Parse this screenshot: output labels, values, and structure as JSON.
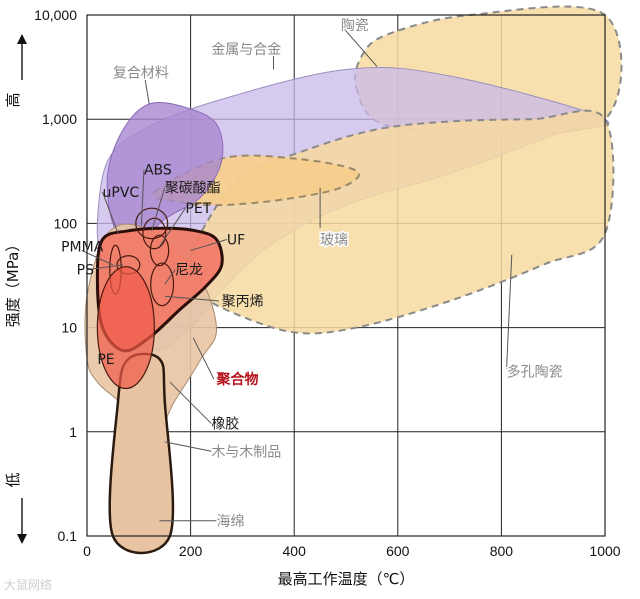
{
  "chart_data": {
    "type": "area",
    "xlabel": "最高工作温度（℃）",
    "ylabel": "强度（MPa）",
    "y_high_label": "高",
    "y_low_label": "低",
    "xlim": [
      0,
      1000
    ],
    "ylim": [
      0.1,
      10000
    ],
    "y_scale": "log",
    "grid": true,
    "x_ticks": [
      0,
      200,
      400,
      600,
      800,
      1000
    ],
    "x_tick_labels": [
      "0",
      "200",
      "400",
      "600",
      "800",
      "1000"
    ],
    "y_ticks": [
      0.1,
      1,
      10,
      100,
      1000,
      10000
    ],
    "y_tick_labels": [
      "0.1",
      "1",
      "10",
      "100",
      "1,000",
      "10,000"
    ],
    "regions": [
      {
        "name": "陶瓷",
        "color": "#f7d9a0",
        "points": [
          [
            520,
            2000
          ],
          [
            570,
            900
          ],
          [
            750,
            750
          ],
          [
            1000,
            1000
          ],
          [
            1000,
            10000
          ],
          [
            740,
            10000
          ],
          [
            580,
            6500
          ],
          [
            530,
            4000
          ]
        ]
      },
      {
        "name": "金属与合金",
        "color": "#c9b8ea",
        "points": [
          [
            30,
            40
          ],
          [
            20,
            100
          ],
          [
            40,
            400
          ],
          [
            110,
            800
          ],
          [
            250,
            1500
          ],
          [
            500,
            3000
          ],
          [
            700,
            2600
          ],
          [
            1000,
            1000
          ],
          [
            900,
            700
          ],
          [
            700,
            300
          ],
          [
            500,
            150
          ],
          [
            350,
            60
          ],
          [
            250,
            20
          ],
          [
            200,
            10
          ],
          [
            130,
            6
          ],
          [
            60,
            10
          ]
        ]
      },
      {
        "name": "多孔陶瓷",
        "color": "#f7d9a0",
        "points": [
          [
            200,
            40
          ],
          [
            230,
            100
          ],
          [
            300,
            280
          ],
          [
            420,
            500
          ],
          [
            560,
            800
          ],
          [
            700,
            950
          ],
          [
            860,
            1000
          ],
          [
            1000,
            1000
          ],
          [
            1000,
            80
          ],
          [
            880,
            40
          ],
          [
            700,
            18
          ],
          [
            520,
            10
          ],
          [
            400,
            9
          ],
          [
            280,
            14
          ],
          [
            215,
            22
          ]
        ]
      },
      {
        "name": "玻璃",
        "color": "#f5cd8c",
        "points": [
          [
            130,
            200
          ],
          [
            260,
            420
          ],
          [
            400,
            420
          ],
          [
            520,
            320
          ],
          [
            490,
            220
          ],
          [
            380,
            170
          ],
          [
            260,
            150
          ],
          [
            180,
            160
          ]
        ]
      },
      {
        "name": "复合材料",
        "color": "#a787cf",
        "points": [
          [
            50,
            100
          ],
          [
            40,
            300
          ],
          [
            70,
            800
          ],
          [
            120,
            1400
          ],
          [
            190,
            1300
          ],
          [
            250,
            900
          ],
          [
            260,
            400
          ],
          [
            220,
            180
          ],
          [
            150,
            110
          ],
          [
            90,
            60
          ]
        ]
      },
      {
        "name": "木与木制品",
        "color": "#e8c4a2",
        "points": [
          [
            60,
            2
          ],
          [
            20,
            3
          ],
          [
            0,
            5
          ],
          [
            0,
            20
          ],
          [
            40,
            80
          ],
          [
            110,
            90
          ],
          [
            210,
            35
          ],
          [
            250,
            10
          ],
          [
            220,
            5
          ],
          [
            170,
            2
          ],
          [
            130,
            1
          ]
        ]
      },
      {
        "name": "橡胶",
        "color": "#e8c4a2",
        "points": [
          [
            50,
            0.1
          ],
          [
            60,
            2
          ],
          [
            80,
            5
          ],
          [
            140,
            5
          ],
          [
            150,
            2
          ],
          [
            160,
            0.1
          ]
        ]
      },
      {
        "name": "聚合物",
        "color": "#f07c68",
        "points": [
          [
            30,
            70
          ],
          [
            20,
            30
          ],
          [
            30,
            10
          ],
          [
            70,
            6
          ],
          [
            120,
            8
          ],
          [
            180,
            15
          ],
          [
            230,
            25
          ],
          [
            260,
            40
          ],
          [
            250,
            70
          ],
          [
            210,
            85
          ],
          [
            150,
            90
          ],
          [
            80,
            85
          ]
        ]
      }
    ],
    "annotations": [
      {
        "text": "uPVC",
        "x": 30,
        "y": 200,
        "color": "#1a1a1a"
      },
      {
        "text": "ABS",
        "x": 110,
        "y": 330,
        "color": "#1a1a1a"
      },
      {
        "text": "聚碳酸酯",
        "x": 150,
        "y": 220,
        "color": "#1a1a1a"
      },
      {
        "text": "PET",
        "x": 190,
        "y": 140,
        "color": "#1a1a1a"
      },
      {
        "text": "PMMA",
        "x": -50,
        "y": 60,
        "color": "#1a1a1a"
      },
      {
        "text": "UF",
        "x": 270,
        "y": 70,
        "color": "#1a1a1a"
      },
      {
        "text": "PS",
        "x": -20,
        "y": 36,
        "color": "#1a1a1a"
      },
      {
        "text": "尼龙",
        "x": 170,
        "y": 36,
        "color": "#1a1a1a"
      },
      {
        "text": "聚丙烯",
        "x": 260,
        "y": 18,
        "color": "#1a1a1a"
      },
      {
        "text": "PE",
        "x": 20,
        "y": 5,
        "color": "#1a1a1a"
      },
      {
        "text": "聚合物",
        "x": 250,
        "y": 3.2,
        "color": "#b5121b",
        "bold": true
      },
      {
        "text": "橡胶",
        "x": 240,
        "y": 1.2,
        "color": "#1a1a1a"
      },
      {
        "text": "木与木制品",
        "x": 240,
        "y": 0.65,
        "color": "#8a8a8a"
      },
      {
        "text": "海绵",
        "x": 250,
        "y": 0.14,
        "color": "#8a8a8a"
      },
      {
        "text": "陶瓷",
        "x": 490,
        "y": 8000,
        "color": "#8a8a8a"
      },
      {
        "text": "金属与合金",
        "x": 240,
        "y": 4700,
        "color": "#8a8a8a"
      },
      {
        "text": "复合材料",
        "x": 50,
        "y": 2800,
        "color": "#8a8a8a"
      },
      {
        "text": "玻璃",
        "x": 450,
        "y": 70,
        "color": "#8a8a8a"
      },
      {
        "text": "多孔陶瓷",
        "x": 810,
        "y": 3.8,
        "color": "#8a8a8a"
      }
    ]
  },
  "watermark": "大鼠网络"
}
